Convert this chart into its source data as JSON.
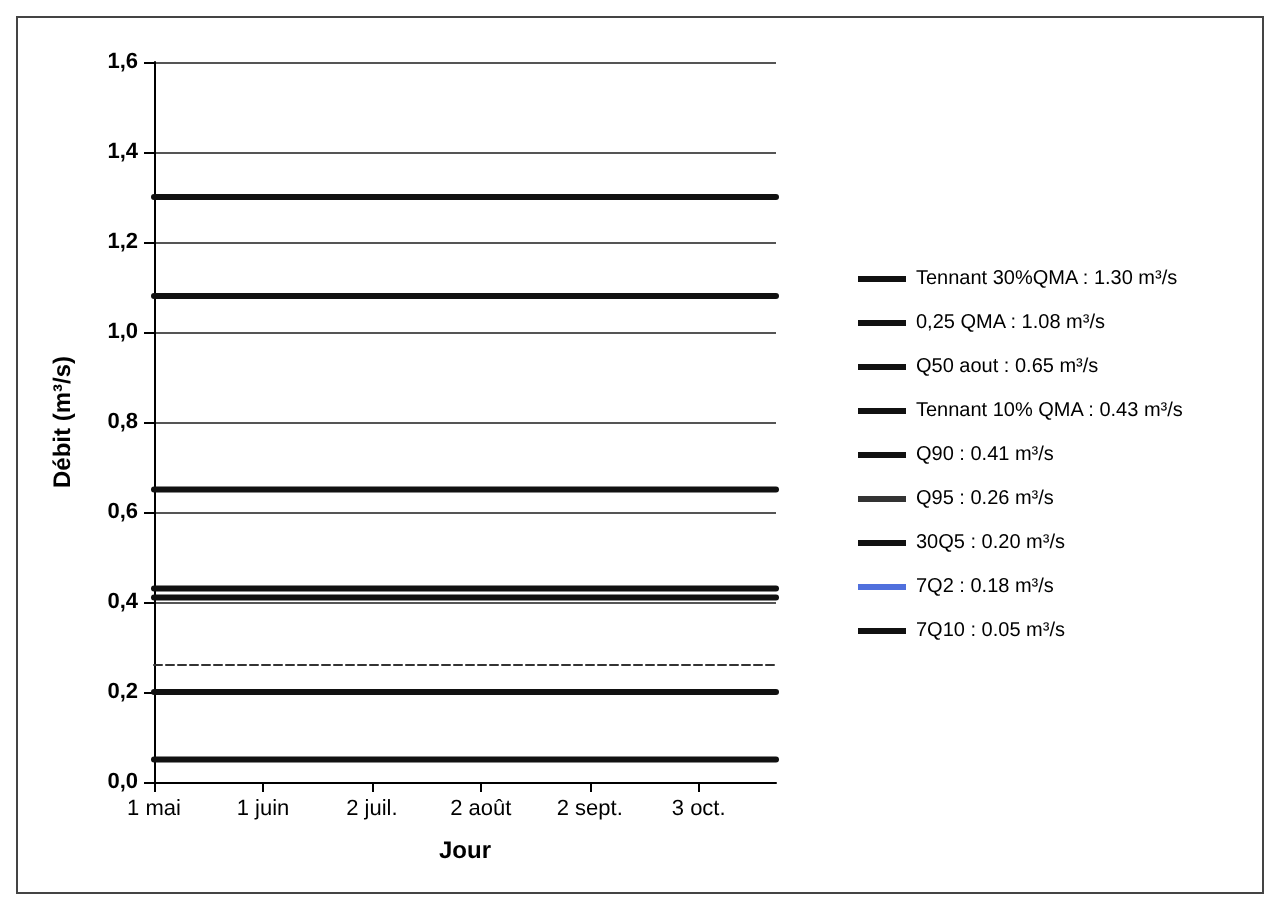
{
  "chart_data": {
    "type": "line",
    "xlabel": "Jour",
    "ylabel": "Débit (m³/s)",
    "xlim": [
      "--05-01",
      "--10-25"
    ],
    "xticks": [
      {
        "value": "--05-01",
        "label": "1 mai"
      },
      {
        "value": "--06-01",
        "label": "1 juin"
      },
      {
        "value": "--07-02",
        "label": "2 juil."
      },
      {
        "value": "--08-02",
        "label": "2 août"
      },
      {
        "value": "--09-02",
        "label": "2 sept."
      },
      {
        "value": "--10-03",
        "label": "3 oct."
      }
    ],
    "ylim": [
      0,
      1.6
    ],
    "yticks": [
      {
        "value": 0,
        "label": "0,0"
      },
      {
        "value": 0.2,
        "label": "0,2"
      },
      {
        "value": 0.4,
        "label": "0,4"
      },
      {
        "value": 0.6,
        "label": "0,6"
      },
      {
        "value": 0.8,
        "label": "0,8"
      },
      {
        "value": 1,
        "label": "1,0"
      },
      {
        "value": 1.2,
        "label": "1,2"
      },
      {
        "value": 1.4,
        "label": "1,4"
      },
      {
        "value": 1.6,
        "label": "1,6"
      }
    ],
    "grid": "y",
    "legend": "right",
    "marker": "none",
    "line_style": "solid",
    "series": [
      {
        "name": "Tennant 30%QMA : 1.30 m³/s",
        "color": "#111111",
        "x": [
          "--05-01",
          "--10-25"
        ],
        "values": [
          1.3,
          1.3
        ]
      },
      {
        "name": "0,25 QMA : 1.08 m³/s",
        "color": "#111111",
        "x": [
          "--05-01",
          "--10-25"
        ],
        "values": [
          1.08,
          1.08
        ]
      },
      {
        "name": "Q50 aout : 0.65 m³/s",
        "color": "#111111",
        "x": [
          "--05-01",
          "--10-25"
        ],
        "values": [
          0.65,
          0.65
        ]
      },
      {
        "name": "Tennant 10% QMA : 0.43 m³/s",
        "color": "#111111",
        "x": [
          "--05-01",
          "--10-25"
        ],
        "values": [
          0.43,
          0.43
        ]
      },
      {
        "name": "Q90 : 0.41 m³/s",
        "color": "#111111",
        "x": [
          "--05-01",
          "--10-25"
        ],
        "values": [
          0.41,
          0.41
        ]
      },
      {
        "name": "Q95 : 0.26 m³/s",
        "color": "#333333",
        "x": [
          "--05-01",
          "--10-25"
        ],
        "values": [
          0.26,
          0.26
        ],
        "line_style": "dashed"
      },
      {
        "name": "30Q5 : 0.20 m³/s",
        "color": "#111111",
        "x": [
          "--05-01",
          "--10-25"
        ],
        "values": [
          0.2,
          0.2
        ]
      },
      {
        "name": "7Q2 : 0.18 m³/s",
        "values": [
          null,
          null
        ]
      },
      {
        "name": "7Q10 : 0.05 m³/s",
        "color": "#111111",
        "x": [
          "--05-01",
          "--10-25"
        ],
        "values": [
          0.05,
          0.05
        ]
      }
    ]
  }
}
